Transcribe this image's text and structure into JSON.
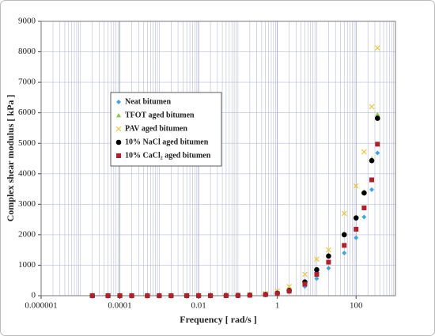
{
  "chart_data": {
    "type": "scatter",
    "x_label": "Frequency [ rad/s ]",
    "y_label": "Complex shear modulus [ kPa ]",
    "x_scale": "log",
    "grid": true,
    "legend": "upper left",
    "xlim": [
      1e-06,
      1000
    ],
    "xticks": [
      {
        "value": 1e-06,
        "label": "0.000001"
      },
      0.0001,
      0.01,
      1,
      100
    ],
    "ylim": [
      0,
      9000
    ],
    "yticks": [
      0,
      1000,
      2000,
      3000,
      4000,
      5000,
      6000,
      7000,
      8000,
      9000
    ],
    "x": [
      2e-05,
      5e-05,
      0.0001,
      0.0002,
      0.0005,
      0.001,
      0.002,
      0.005,
      0.01,
      0.02,
      0.05,
      0.1,
      0.2,
      0.5,
      1,
      2,
      5,
      10,
      20,
      50,
      100,
      160,
      250,
      350
    ],
    "series": [
      {
        "name": "Neat bitumen",
        "color": "#3fa6e0",
        "marker": "diamond",
        "values": [
          0,
          0,
          0,
          0,
          0,
          0,
          0,
          0,
          0,
          1,
          2,
          5,
          10,
          25,
          55,
          120,
          300,
          560,
          900,
          1400,
          1900,
          2580,
          3480,
          4680
        ]
      },
      {
        "name": "TFOT aged bitumen",
        "color": "#8dc63f",
        "marker": "triangle",
        "values": [
          0,
          0,
          0,
          0,
          0,
          0,
          0,
          0,
          1,
          2,
          4,
          9,
          18,
          42,
          85,
          180,
          470,
          870,
          1350,
          2050,
          2600,
          3420,
          4500,
          5950
        ]
      },
      {
        "name": "PAV aged bitumen",
        "color": "#e8c840",
        "marker": "x",
        "values": [
          0,
          0,
          0,
          0,
          0,
          0,
          1,
          1,
          2,
          3,
          7,
          15,
          30,
          70,
          150,
          300,
          700,
          1200,
          1500,
          2700,
          3600,
          4720,
          6200,
          8130
        ]
      },
      {
        "name": "10% NaCl aged bitumen",
        "color": "#000000",
        "marker": "circle",
        "values": [
          0,
          0,
          0,
          0,
          0,
          0,
          0,
          0,
          1,
          2,
          4,
          8,
          17,
          40,
          80,
          170,
          450,
          850,
          1300,
          2000,
          2550,
          3370,
          4430,
          5820
        ]
      },
      {
        "name": "10% CaCl₂ aged bitumen",
        "color": "#b0202c",
        "marker": "square",
        "values": [
          0,
          0,
          0,
          0,
          0,
          0,
          0,
          0,
          1,
          1,
          3,
          7,
          14,
          35,
          70,
          150,
          380,
          700,
          1100,
          1650,
          2180,
          2880,
          3800,
          4970
        ]
      }
    ]
  }
}
